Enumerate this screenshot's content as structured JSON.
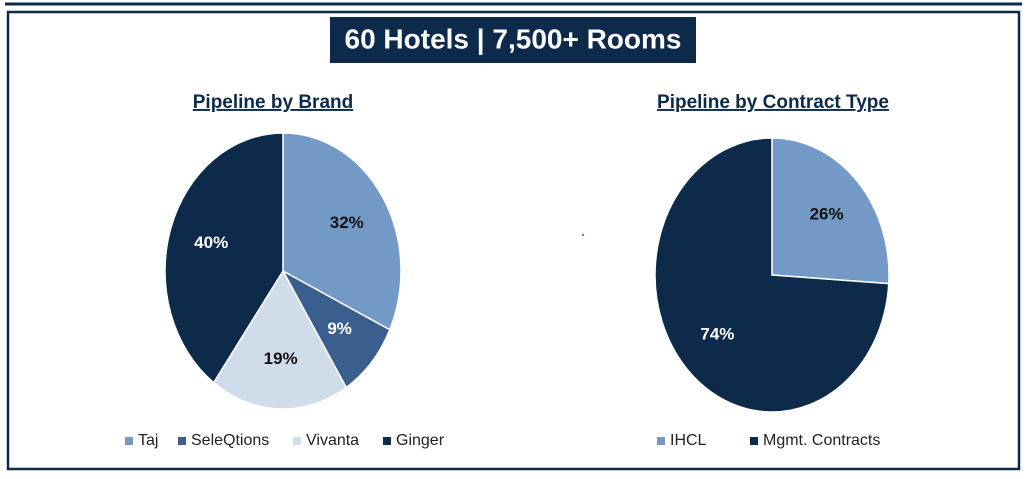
{
  "header": {
    "title": "60 Hotels | 7,500+ Rooms"
  },
  "chart_data": [
    {
      "type": "pie",
      "title": "Pipeline by Brand",
      "categories": [
        "Taj",
        "SeleQtions",
        "Vivanta",
        "Ginger"
      ],
      "values": [
        32,
        9,
        19,
        40
      ],
      "value_labels": [
        "32%",
        "9%",
        "19%",
        "40%"
      ],
      "colors": [
        "#7399c6",
        "#3a5f8f",
        "#d0dcea",
        "#0d2a4a"
      ],
      "legend": "bottom"
    },
    {
      "type": "pie",
      "title": "Pipeline by Contract Type",
      "categories": [
        "IHCL",
        "Mgmt. Contracts"
      ],
      "values": [
        26,
        74
      ],
      "value_labels": [
        "26%",
        "74%"
      ],
      "colors": [
        "#7399c6",
        "#0d2a4a"
      ],
      "legend": "bottom"
    }
  ]
}
